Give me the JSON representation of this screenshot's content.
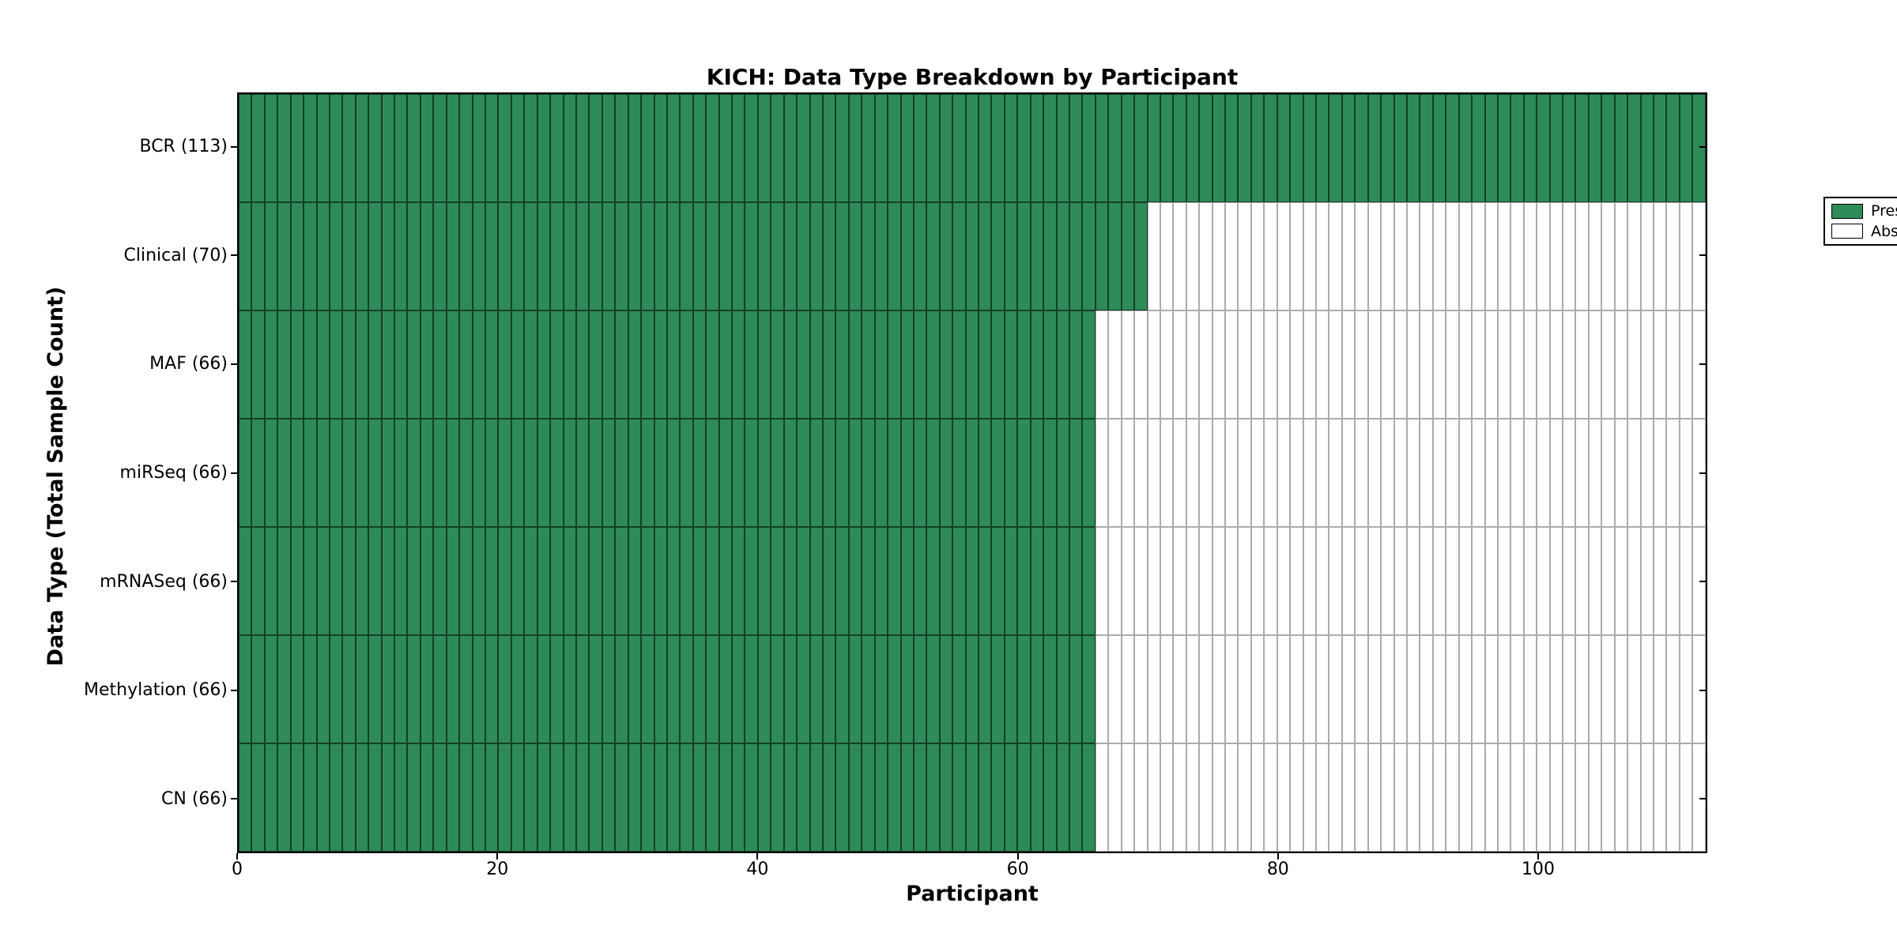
{
  "title": "KICH: Data Type Breakdown by Participant",
  "x_axis": {
    "label": "Participant",
    "ticks": [
      0,
      20,
      40,
      60,
      80,
      100
    ],
    "min": 0,
    "max": 113
  },
  "y_axis": {
    "label": "Data Type (Total Sample Count)"
  },
  "legend": {
    "position": "upper right",
    "items": [
      {
        "label": "Present",
        "swatch": "present"
      },
      {
        "label": "Absent",
        "swatch": "absent"
      }
    ]
  },
  "colors": {
    "present": "#2e8b57",
    "absent": "#ffffff",
    "present_cell_border": "rgba(0,0,0,0.55)",
    "absent_cell_border": "rgba(0,0,0,0.33)",
    "frame": "#000000",
    "background": "#ffffff"
  },
  "chart_data": {
    "type": "heatmap",
    "title": "KICH: Data Type Breakdown by Participant",
    "xlabel": "Participant",
    "ylabel": "Data Type (Total Sample Count)",
    "total_participants": 113,
    "x_ticks": [
      0,
      20,
      40,
      60,
      80,
      100
    ],
    "xlim": [
      0,
      113
    ],
    "grid": false,
    "legend": [
      "Present",
      "Absent"
    ],
    "legend_position": "upper right",
    "rows": [
      {
        "label": "BCR (113)",
        "data_type": "BCR",
        "total_sample_count": 113,
        "present": 113,
        "absent": 0
      },
      {
        "label": "Clinical (70)",
        "data_type": "Clinical",
        "total_sample_count": 70,
        "present": 70,
        "absent": 43
      },
      {
        "label": "MAF (66)",
        "data_type": "MAF",
        "total_sample_count": 66,
        "present": 66,
        "absent": 47
      },
      {
        "label": "miRSeq (66)",
        "data_type": "miRSeq",
        "total_sample_count": 66,
        "present": 66,
        "absent": 47
      },
      {
        "label": "mRNASeq (66)",
        "data_type": "mRNASeq",
        "total_sample_count": 66,
        "present": 66,
        "absent": 47
      },
      {
        "label": "Methylation (66)",
        "data_type": "Methylation",
        "total_sample_count": 66,
        "present": 66,
        "absent": 47
      },
      {
        "label": "CN (66)",
        "data_type": "CN",
        "total_sample_count": 66,
        "present": 66,
        "absent": 47
      }
    ]
  }
}
